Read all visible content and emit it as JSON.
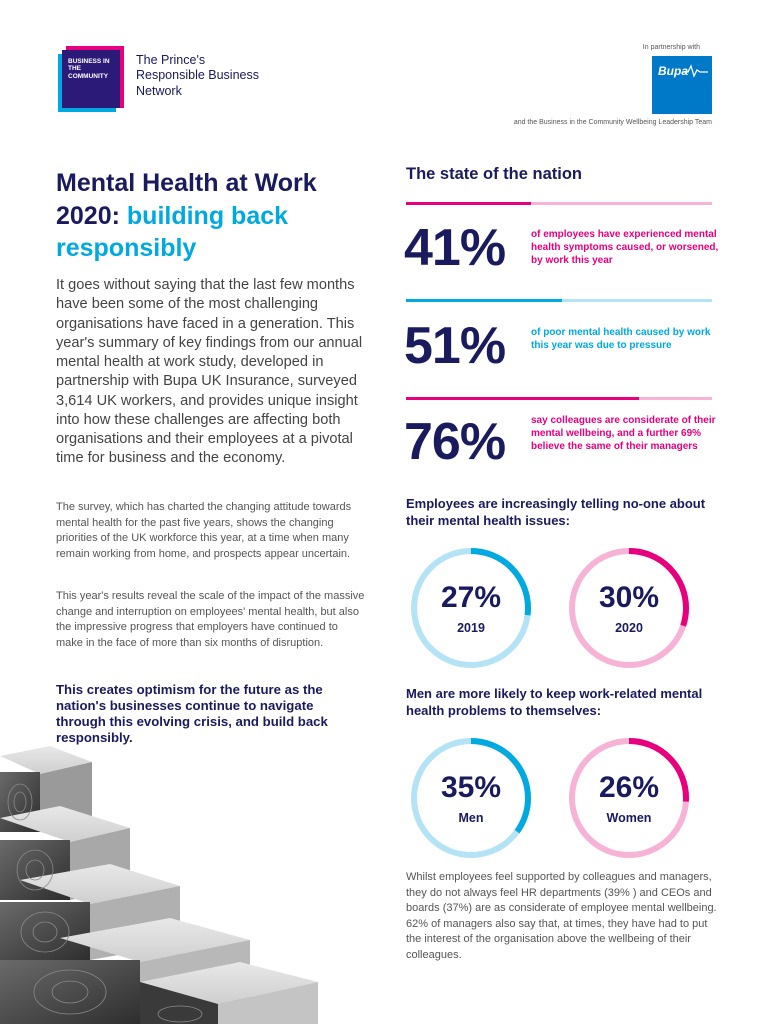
{
  "header": {
    "logo_text": "BUSINESS IN THE COMMUNITY",
    "tagline": "The Prince's Responsible Business Network",
    "partner_label": "In partnership with",
    "partner_brand": "Bupa",
    "partner_note": "and the Business in the Community Wellbeing Leadership Team"
  },
  "article": {
    "title_main": "Mental Health at Work 2020:",
    "title_accent": "building back responsibly",
    "intro": "It goes without saying that the last few months have been some of the most challenging organisations have faced in a generation. This year's summary of key findings from our annual mental health at work study, developed in partnership with Bupa UK Insurance, surveyed 3,614 UK workers, and provides unique insight into how these challenges are affecting both organisations and their employees at a pivotal time for business and the economy.",
    "body1": "The survey, which has charted the changing attitude towards mental health for the past five years, shows the changing priorities of the UK workforce this year, at a time when many remain working from home, and prospects appear uncertain.",
    "body2": "This year's results reveal the scale of the impact of the massive change and interruption on employees' mental health, but also the impressive progress that employers have continued to make in the face of more than six months of disruption.",
    "callout": "This creates optimism for the future as the nation's businesses continue to navigate through this evolving crisis, and build back responsibly."
  },
  "nation": {
    "title": "The state of the nation",
    "stats": [
      {
        "value": "41%",
        "fraction": 0.41,
        "color": "#e6007e",
        "track": "#f6b3d6",
        "desc": "of employees have experienced mental health symptoms caused, or worsened, by work this year"
      },
      {
        "value": "51%",
        "fraction": 0.51,
        "color": "#00a9e0",
        "track": "#b3e3f5",
        "desc": "of poor mental health caused by work this year was due to pressure"
      },
      {
        "value": "76%",
        "fraction": 0.76,
        "color": "#e6007e",
        "track": "#f6b3d6",
        "desc": "say colleagues are considerate of their mental wellbeing, and a further 69% believe the same of their managers"
      }
    ]
  },
  "telling": {
    "title": "Employees are increasingly telling no-one about their mental health issues:",
    "donuts": [
      {
        "value": "27%",
        "fraction": 0.27,
        "label": "2019",
        "color": "#00a9e0",
        "track": "#b3e3f5"
      },
      {
        "value": "30%",
        "fraction": 0.3,
        "label": "2020",
        "color": "#e6007e",
        "track": "#f6b3d6"
      }
    ]
  },
  "men": {
    "title": "Men are more likely to keep work-related mental health problems to themselves:",
    "donuts": [
      {
        "value": "35%",
        "fraction": 0.35,
        "label": "Men",
        "color": "#00a9e0",
        "track": "#b3e3f5"
      },
      {
        "value": "26%",
        "fraction": 0.26,
        "label": "Women",
        "color": "#e6007e",
        "track": "#f6b3d6"
      }
    ]
  },
  "closing": "Whilst employees feel supported by colleagues and managers, they do not always feel HR departments (39% ) and CEOs and boards (37%) are as considerate of employee mental wellbeing. 62% of managers also say that, at times, they have had to put the interest of the organisation above the wellbeing of their colleagues."
}
